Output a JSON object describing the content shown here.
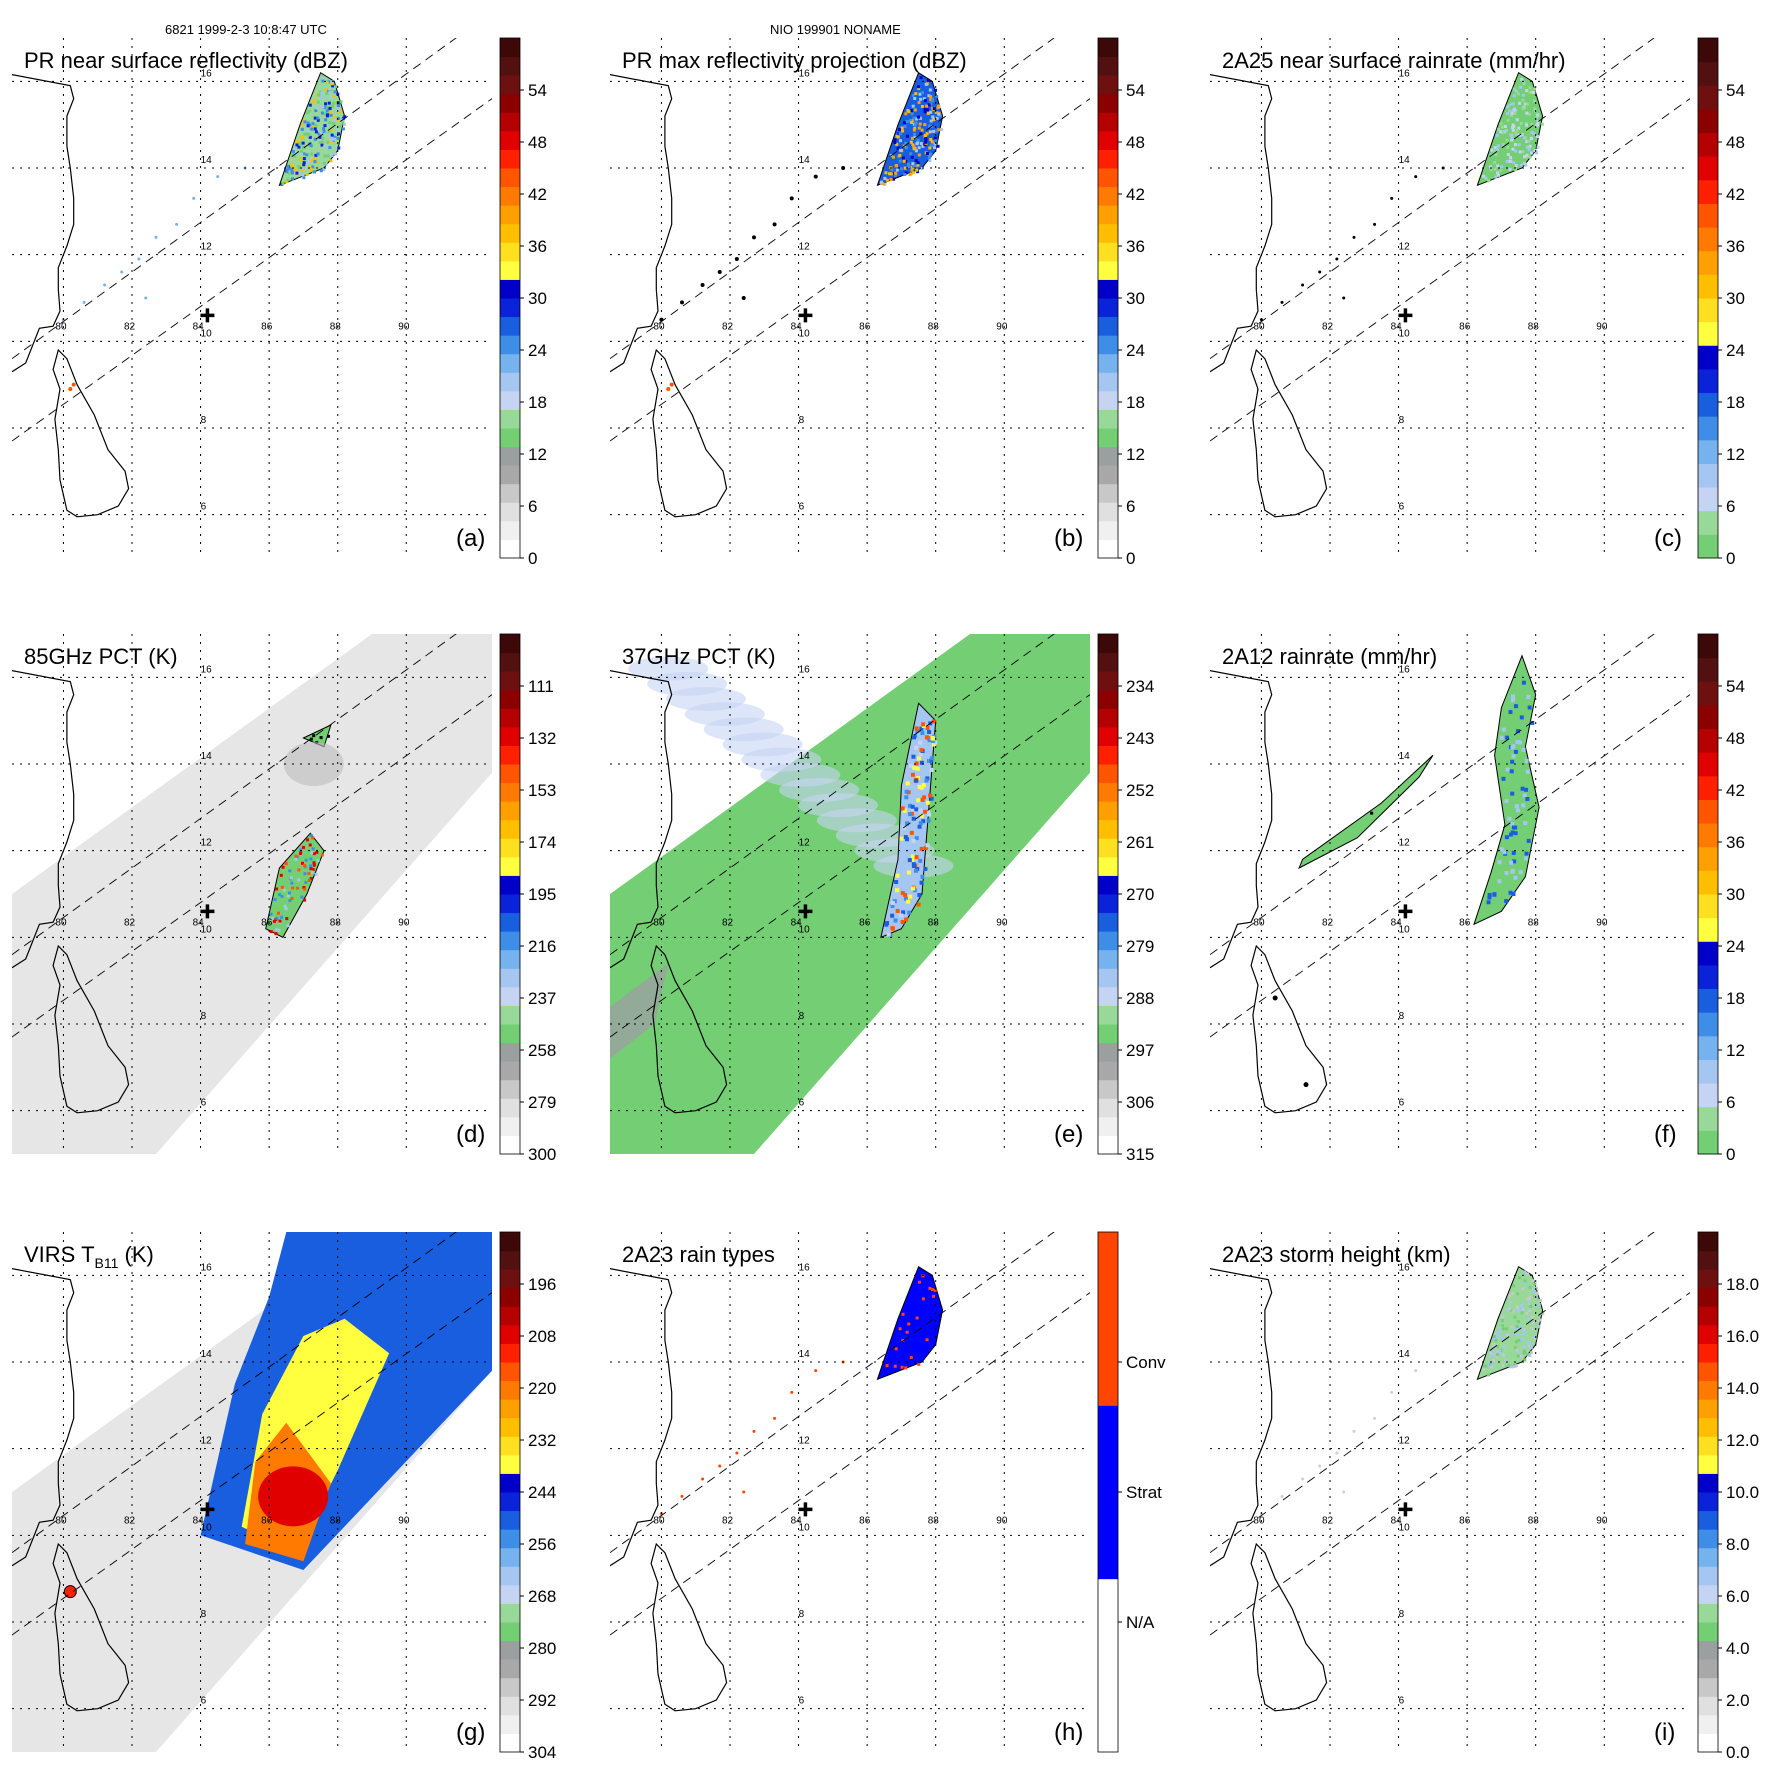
{
  "header": {
    "orbit_time": "6821 1999-2-3 10:8:47 UTC",
    "storm_name": "NIO 199901 NONAME"
  },
  "map": {
    "lat_labels": [
      "16",
      "14",
      "12",
      "10",
      "8",
      "6"
    ],
    "lon_labels": [
      "80",
      "82",
      "84",
      "86",
      "88",
      "90"
    ],
    "lat_values": [
      16,
      14,
      12,
      10,
      8,
      6
    ],
    "lon_values": [
      80,
      82,
      84,
      86,
      88,
      90
    ],
    "lon_range": [
      78.5,
      92.5
    ],
    "lat_range": [
      5.0,
      17.0
    ],
    "storm_center": {
      "lon": 84.2,
      "lat": 10.6
    },
    "swath_color": "#d9d9d9",
    "coast_color": "#000000"
  },
  "panels": [
    {
      "id": "a",
      "title": "PR near surface reflectivity (dBZ)",
      "label": "(a)",
      "scale_labels": [
        "0",
        "6",
        "12",
        "18",
        "24",
        "30",
        "36",
        "42",
        "48",
        "54"
      ],
      "scale_values": [
        0,
        6,
        12,
        18,
        24,
        30,
        36,
        42,
        48,
        54
      ],
      "scale_colors": [
        "#ffffff",
        "#f0f0f0",
        "#e0e0e0",
        "#c8c8c8",
        "#a8a8a8",
        "#9aa0a0",
        "#74cf74",
        "#98d898",
        "#c6d4f4",
        "#a6c6f2",
        "#76b2ee",
        "#3e8ee8",
        "#1a5ee0",
        "#0a22d8",
        "#0000c8",
        "#ffff40",
        "#ffe020",
        "#ffbf00",
        "#ff9f00",
        "#ff7a00",
        "#ff5500",
        "#ff2000",
        "#e00000",
        "#b40000",
        "#8c0000",
        "#6e1010",
        "#521010",
        "#3c0808"
      ],
      "swath": "narrow",
      "field": "pr_surface"
    },
    {
      "id": "b",
      "title": "PR max reflectivity projection (dBZ)",
      "label": "(b)",
      "scale_labels": [
        "0",
        "6",
        "12",
        "18",
        "24",
        "30",
        "36",
        "42",
        "48",
        "54"
      ],
      "scale_values": [
        0,
        6,
        12,
        18,
        24,
        30,
        36,
        42,
        48,
        54
      ],
      "scale_colors": [
        "#ffffff",
        "#f0f0f0",
        "#e0e0e0",
        "#c8c8c8",
        "#a8a8a8",
        "#9aa0a0",
        "#74cf74",
        "#98d898",
        "#c6d4f4",
        "#a6c6f2",
        "#76b2ee",
        "#3e8ee8",
        "#1a5ee0",
        "#0a22d8",
        "#0000c8",
        "#ffff40",
        "#ffe020",
        "#ffbf00",
        "#ff9f00",
        "#ff7a00",
        "#ff5500",
        "#ff2000",
        "#e00000",
        "#b40000",
        "#8c0000",
        "#6e1010",
        "#521010",
        "#3c0808"
      ],
      "swath": "narrow",
      "field": "pr_max"
    },
    {
      "id": "c",
      "title": "2A25 near surface rainrate (mm/hr)",
      "label": "(c)",
      "scale_labels": [
        "0",
        "6",
        "12",
        "18",
        "24",
        "30",
        "36",
        "42",
        "48",
        "54"
      ],
      "scale_values": [
        0,
        6,
        12,
        18,
        24,
        30,
        36,
        42,
        48,
        54
      ],
      "scale_colors": [
        "#74cf74",
        "#98d898",
        "#c6d4f4",
        "#a6c6f2",
        "#76b2ee",
        "#3e8ee8",
        "#1a5ee0",
        "#0a22d8",
        "#0000c8",
        "#ffff40",
        "#ffe020",
        "#ffbf00",
        "#ff9f00",
        "#ff7a00",
        "#ff5500",
        "#ff2000",
        "#e00000",
        "#b40000",
        "#8c0000",
        "#6e1010",
        "#521010",
        "#3c0808"
      ],
      "swath": "narrow",
      "field": "rain_2a25"
    },
    {
      "id": "d",
      "title": "85GHz PCT (K)",
      "label": "(d)",
      "scale_labels": [
        "300",
        "279",
        "258",
        "237",
        "216",
        "195",
        "174",
        "153",
        "132",
        "111"
      ],
      "scale_values": [
        300,
        279,
        258,
        237,
        216,
        195,
        174,
        153,
        132,
        111
      ],
      "scale_colors": [
        "#ffffff",
        "#f0f0f0",
        "#e0e0e0",
        "#c8c8c8",
        "#a8a8a8",
        "#9aa0a0",
        "#74cf74",
        "#98d898",
        "#c6d4f4",
        "#a6c6f2",
        "#76b2ee",
        "#3e8ee8",
        "#1a5ee0",
        "#0a22d8",
        "#0000c8",
        "#ffff40",
        "#ffe020",
        "#ffbf00",
        "#ff9f00",
        "#ff7a00",
        "#ff5500",
        "#ff2000",
        "#e00000",
        "#b40000",
        "#8c0000",
        "#6e1010",
        "#521010",
        "#3c0808"
      ],
      "swath": "wide_gray",
      "field": "pct85"
    },
    {
      "id": "e",
      "title": "37GHz PCT (K)",
      "label": "(e)",
      "scale_labels": [
        "315",
        "306",
        "297",
        "288",
        "279",
        "270",
        "261",
        "252",
        "243",
        "234"
      ],
      "scale_values": [
        315,
        306,
        297,
        288,
        279,
        270,
        261,
        252,
        243,
        234
      ],
      "scale_colors": [
        "#ffffff",
        "#f0f0f0",
        "#e0e0e0",
        "#c8c8c8",
        "#a8a8a8",
        "#9aa0a0",
        "#74cf74",
        "#98d898",
        "#c6d4f4",
        "#a6c6f2",
        "#76b2ee",
        "#3e8ee8",
        "#1a5ee0",
        "#0a22d8",
        "#0000c8",
        "#ffff40",
        "#ffe020",
        "#ffbf00",
        "#ff9f00",
        "#ff7a00",
        "#ff5500",
        "#ff2000",
        "#e00000",
        "#b40000",
        "#8c0000",
        "#6e1010",
        "#521010",
        "#3c0808"
      ],
      "swath": "wide_green",
      "field": "pct37"
    },
    {
      "id": "f",
      "title": "2A12 rainrate (mm/hr)",
      "label": "(f)",
      "scale_labels": [
        "0",
        "6",
        "12",
        "18",
        "24",
        "30",
        "36",
        "42",
        "48",
        "54"
      ],
      "scale_values": [
        0,
        6,
        12,
        18,
        24,
        30,
        36,
        42,
        48,
        54
      ],
      "scale_colors": [
        "#74cf74",
        "#98d898",
        "#c6d4f4",
        "#a6c6f2",
        "#76b2ee",
        "#3e8ee8",
        "#1a5ee0",
        "#0a22d8",
        "#0000c8",
        "#ffff40",
        "#ffe020",
        "#ffbf00",
        "#ff9f00",
        "#ff7a00",
        "#ff5500",
        "#ff2000",
        "#e00000",
        "#b40000",
        "#8c0000",
        "#6e1010",
        "#521010",
        "#3c0808"
      ],
      "swath": "narrow",
      "field": "rain_2a12"
    },
    {
      "id": "g",
      "title": "VIRS T",
      "title_sub": "B11",
      "title_suffix": " (K)",
      "label": "(g)",
      "scale_labels": [
        "304",
        "292",
        "280",
        "268",
        "256",
        "244",
        "232",
        "220",
        "208",
        "196"
      ],
      "scale_values": [
        304,
        292,
        280,
        268,
        256,
        244,
        232,
        220,
        208,
        196
      ],
      "scale_colors": [
        "#ffffff",
        "#f0f0f0",
        "#e0e0e0",
        "#c8c8c8",
        "#a8a8a8",
        "#9aa0a0",
        "#74cf74",
        "#98d898",
        "#c6d4f4",
        "#a6c6f2",
        "#76b2ee",
        "#3e8ee8",
        "#1a5ee0",
        "#0a22d8",
        "#0000c8",
        "#ffff40",
        "#ffe020",
        "#ffbf00",
        "#ff9f00",
        "#ff7a00",
        "#ff5500",
        "#ff2000",
        "#e00000",
        "#b40000",
        "#8c0000",
        "#6e1010",
        "#521010",
        "#3c0808"
      ],
      "swath": "wide_gray",
      "field": "virs"
    },
    {
      "id": "h",
      "title": "2A23 rain types",
      "label": "(h)",
      "scale_labels": [
        "N/A",
        "Strat",
        "Conv"
      ],
      "scale_colors": [
        "#ffffff",
        "#0000ff",
        "#ff4500"
      ],
      "swath": "narrow",
      "field": "raintype"
    },
    {
      "id": "i",
      "title": "2A23 storm height (km)",
      "label": "(i)",
      "scale_labels": [
        "0.0",
        "2.0",
        "4.0",
        "6.0",
        "8.0",
        "10.0",
        "12.0",
        "14.0",
        "16.0",
        "18.0"
      ],
      "scale_values": [
        0,
        2,
        4,
        6,
        8,
        10,
        12,
        14,
        16,
        18
      ],
      "scale_colors": [
        "#ffffff",
        "#f0f0f0",
        "#e0e0e0",
        "#c8c8c8",
        "#a8a8a8",
        "#9aa0a0",
        "#74cf74",
        "#98d898",
        "#c6d4f4",
        "#a6c6f2",
        "#76b2ee",
        "#3e8ee8",
        "#1a5ee0",
        "#0a22d8",
        "#0000c8",
        "#ffff40",
        "#ffe020",
        "#ffbf00",
        "#ff9f00",
        "#ff7a00",
        "#ff5500",
        "#ff2000",
        "#e00000",
        "#b40000",
        "#8c0000",
        "#6e1010",
        "#521010",
        "#3c0808"
      ],
      "swath": "narrow",
      "field": "height"
    }
  ]
}
